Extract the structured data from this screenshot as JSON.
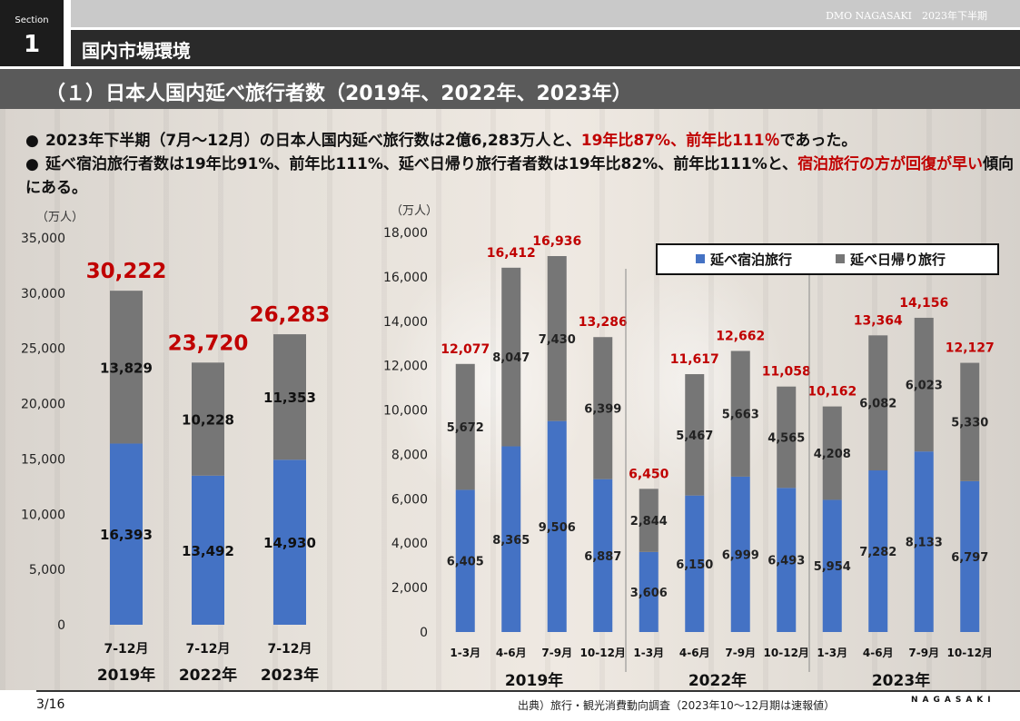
{
  "header": {
    "section_label": "Section",
    "section_number": "1",
    "brand": "DMO NAGASAKI　2023年下半期",
    "title": "国内市場環境",
    "subtitle": "（１）日本人国内延べ旅行者数（2019年、2022年、2023年）"
  },
  "bullets": {
    "b1_pre": "2023年下半期（7月～12月）の日本人国内延べ旅行数は2億6,283万人と、",
    "b1_red": "19年比87%、前年比111％",
    "b1_post": "であった。",
    "b2_pre": "延べ宿泊旅行者数は19年比91%、前年比111%、延べ日帰り旅行者者数は19年比82%、前年比111%と、",
    "b2_red": "宿泊旅行の方が回復が早い",
    "b2_post": "傾向にある。"
  },
  "footer": {
    "page": "3/16",
    "source": "出典）旅行・観光消費動向調査（2023年10～12月期は速報値）",
    "logo": "NAGASAKI"
  },
  "colors": {
    "stay": "#4472c4",
    "day": "#767676",
    "total_label": "#c00000"
  },
  "chart_data": [
    {
      "type": "bar",
      "stacked": true,
      "ylabel": "（万人）",
      "ylim": [
        0,
        35000
      ],
      "yticks": [
        "0",
        "5,000",
        "10,000",
        "15,000",
        "20,000",
        "25,000",
        "30,000",
        "35,000"
      ],
      "categories": [
        "7-12月",
        "7-12月",
        "7-12月"
      ],
      "groups": [
        "2019年",
        "2022年",
        "2023年"
      ],
      "series": [
        {
          "name": "延べ宿泊旅行",
          "values": [
            16393,
            13492,
            14930
          ],
          "labels": [
            "16,393",
            "13,492",
            "14,930"
          ]
        },
        {
          "name": "延べ日帰り旅行",
          "values": [
            13829,
            10228,
            11353
          ],
          "labels": [
            "13,829",
            "10,228",
            "11,353"
          ]
        }
      ],
      "totals": [
        "30,222",
        "23,720",
        "26,283"
      ]
    },
    {
      "type": "bar",
      "stacked": true,
      "ylabel": "（万人）",
      "ylim": [
        0,
        18000
      ],
      "yticks": [
        "0",
        "2,000",
        "4,000",
        "6,000",
        "8,000",
        "10,000",
        "12,000",
        "14,000",
        "16,000",
        "18,000"
      ],
      "categories": [
        "1-3月",
        "4-6月",
        "7-9月",
        "10-12月",
        "1-3月",
        "4-6月",
        "7-9月",
        "10-12月",
        "1-3月",
        "4-6月",
        "7-9月",
        "10-12月"
      ],
      "groups": [
        "2019年",
        "2022年",
        "2023年"
      ],
      "legend": {
        "position": "top-right",
        "items": [
          "延べ宿泊旅行",
          "延べ日帰り旅行"
        ]
      },
      "series": [
        {
          "name": "延べ宿泊旅行",
          "values": [
            6405,
            8365,
            9506,
            6887,
            3606,
            6150,
            6999,
            6493,
            5954,
            7282,
            8133,
            6797
          ],
          "labels": [
            "6,405",
            "8,365",
            "9,506",
            "6,887",
            "3,606",
            "6,150",
            "6,999",
            "6,493",
            "5,954",
            "7,282",
            "8,133",
            "6,797"
          ]
        },
        {
          "name": "延べ日帰り旅行",
          "values": [
            5672,
            8047,
            7430,
            6399,
            2844,
            5467,
            5663,
            4565,
            4208,
            6082,
            6023,
            5330
          ],
          "labels": [
            "5,672",
            "8,047",
            "7,430",
            "6,399",
            "2,844",
            "5,467",
            "5,663",
            "4,565",
            "4,208",
            "6,082",
            "6,023",
            "5,330"
          ]
        }
      ],
      "totals": [
        "12,077",
        "16,412",
        "16,936",
        "13,286",
        "6,450",
        "11,617",
        "12,662",
        "11,058",
        "10,162",
        "13,364",
        "14,156",
        "12,127"
      ]
    }
  ]
}
